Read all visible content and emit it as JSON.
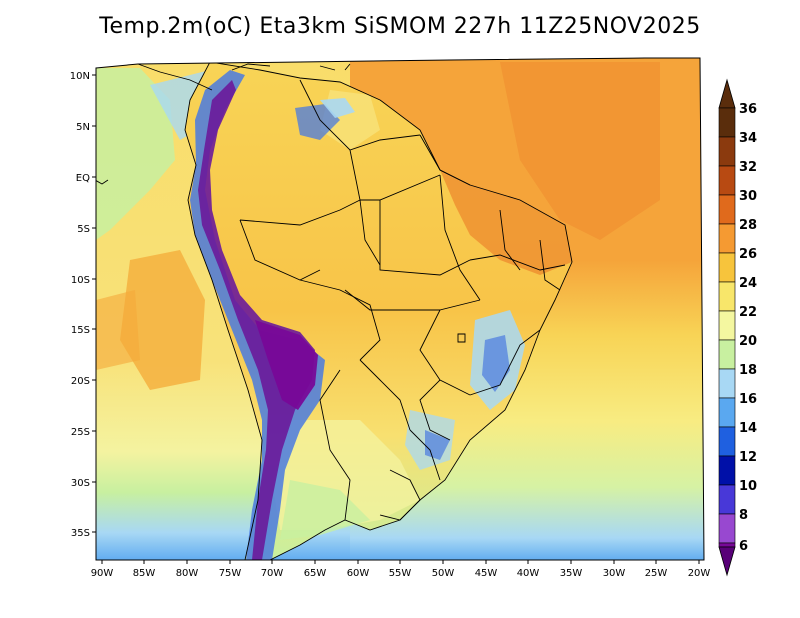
{
  "title": "Temp.2m(oC) Eta3km SiSMOM 227h 11Z25NOV2025",
  "axes": {
    "lat_labels": [
      "10N",
      "5N",
      "EQ",
      "5S",
      "10S",
      "15S",
      "20S",
      "25S",
      "30S",
      "35S"
    ],
    "lon_labels": [
      "90W",
      "85W",
      "80W",
      "75W",
      "70W",
      "65W",
      "60W",
      "55W",
      "50W",
      "45W",
      "40W",
      "35W",
      "30W",
      "25W",
      "20W"
    ]
  },
  "colorbar": {
    "levels": [
      "36",
      "34",
      "32",
      "30",
      "28",
      "26",
      "24",
      "22",
      "20",
      "18",
      "16",
      "14",
      "12",
      "10",
      "8",
      "6"
    ],
    "colors": [
      "#5a2d0c",
      "#8b3a0e",
      "#b84a12",
      "#e06a1c",
      "#f59a32",
      "#f7c43c",
      "#f8e66a",
      "#f4f7a0",
      "#c8f0a0",
      "#a8d8f4",
      "#5aa8f0",
      "#1f60e0",
      "#0010a8",
      "#4838d8",
      "#9848d0",
      "#780898",
      "#580078"
    ]
  },
  "colors": {
    "ocean": "#f5c95a",
    "land_warm": "#f7b43c",
    "land_hot": "#e8822a",
    "andes_cold": "#6a1a9a",
    "andes_mid": "#4a7ae0",
    "south_cool": "#bfe8a8",
    "border": "#000000"
  }
}
